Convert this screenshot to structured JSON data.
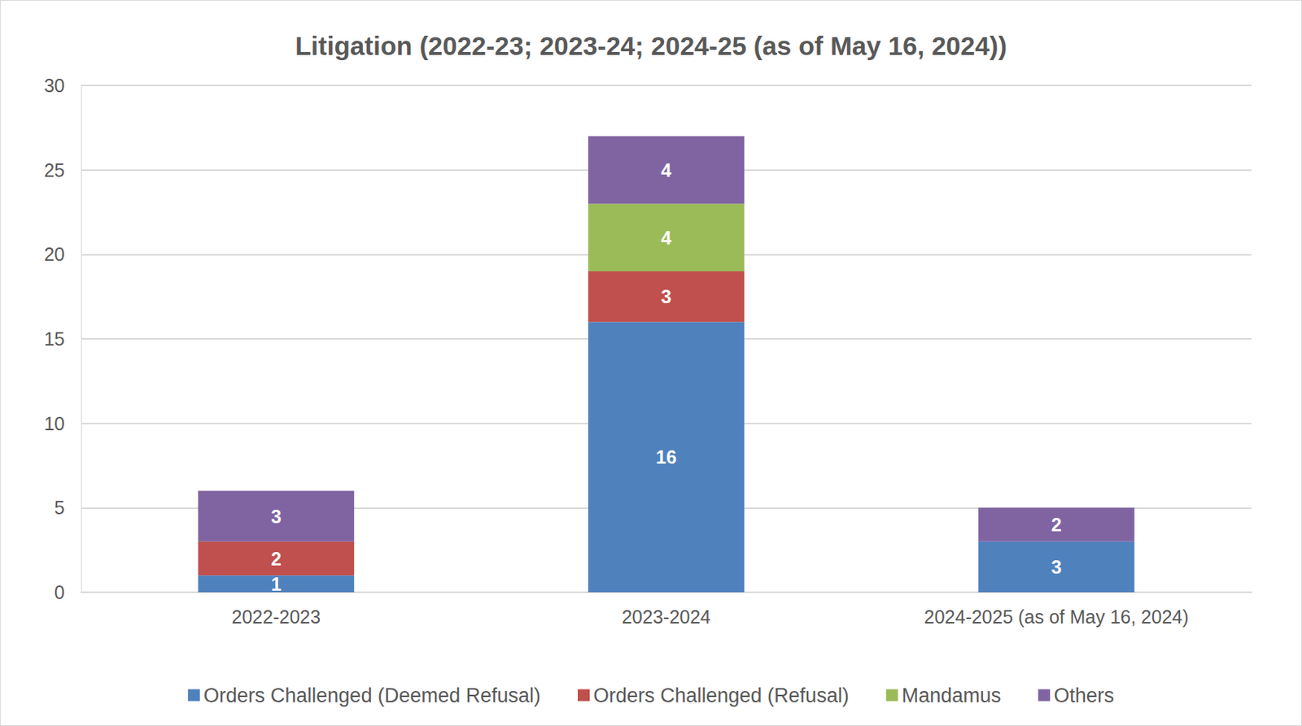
{
  "chart_data": {
    "type": "bar",
    "title": "Litigation (2022-23; 2023-24; 2024-25 (as of May 16, 2024))",
    "categories": [
      "2022-2023",
      "2023-2024",
      "2024-2025 (as of May 16, 2024)"
    ],
    "series": [
      {
        "name": "Orders Challenged (Deemed Refusal)",
        "color": "#4f81bd",
        "values": [
          1,
          16,
          3
        ]
      },
      {
        "name": "Orders Challenged (Refusal)",
        "color": "#c0504d",
        "values": [
          2,
          3,
          null
        ]
      },
      {
        "name": "Mandamus",
        "color": "#9bbb59",
        "values": [
          null,
          4,
          null
        ]
      },
      {
        "name": "Others",
        "color": "#8064a2",
        "values": [
          3,
          4,
          2
        ]
      }
    ],
    "ylim": [
      0,
      30
    ],
    "yticks": [
      0,
      5,
      10,
      15,
      20,
      25,
      30
    ],
    "grid": true,
    "stacked": true,
    "data_labels": true,
    "legend": "bottom"
  }
}
